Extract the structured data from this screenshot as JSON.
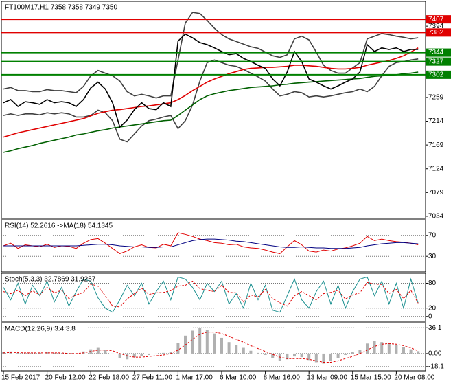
{
  "chart_data": [
    {
      "type": "line",
      "title": "FT100M17,H1 7358 7358 7349 7350",
      "ylim": [
        7030,
        7441
      ],
      "yticks": [
        7394,
        7259,
        7214,
        7169,
        7124,
        7079,
        7034
      ],
      "levels": [
        {
          "value": 7407,
          "color": "#e00000"
        },
        {
          "value": 7382,
          "color": "#e00000"
        },
        {
          "value": 7344,
          "color": "#008000"
        },
        {
          "value": 7327,
          "color": "#008000"
        },
        {
          "value": 7302,
          "color": "#008000"
        }
      ],
      "series": [
        {
          "color": "#404040",
          "values": [
            7275,
            7278,
            7272,
            7272,
            7270,
            7270,
            7274,
            7272,
            7272,
            7270,
            7268,
            7280,
            7300,
            7310,
            7305,
            7300,
            7290,
            7270,
            7262,
            7265,
            7262,
            7258,
            7262,
            7262,
            7330,
            7400,
            7420,
            7418,
            7405,
            7390,
            7378,
            7370,
            7365,
            7360,
            7355,
            7352,
            7345,
            7338,
            7335,
            7340,
            7370,
            7375,
            7368,
            7345,
            7320,
            7310,
            7305,
            7305,
            7315,
            7325,
            7370,
            7375,
            7380,
            7378,
            7375,
            7373,
            7370,
            7372
          ]
        },
        {
          "color": "#404040",
          "values": [
            7225,
            7228,
            7225,
            7228,
            7228,
            7226,
            7230,
            7228,
            7230,
            7228,
            7222,
            7222,
            7225,
            7235,
            7230,
            7215,
            7180,
            7175,
            7190,
            7205,
            7215,
            7218,
            7222,
            7225,
            7200,
            7215,
            7245,
            7290,
            7325,
            7330,
            7325,
            7320,
            7318,
            7312,
            7305,
            7298,
            7290,
            7275,
            7262,
            7265,
            7270,
            7268,
            7260,
            7262,
            7260,
            7262,
            7265,
            7268,
            7270,
            7275,
            7270,
            7280,
            7300,
            7318,
            7325,
            7327,
            7330,
            7332
          ]
        },
        {
          "color": "#006000",
          "values": [
            7155,
            7158,
            7162,
            7165,
            7168,
            7172,
            7175,
            7178,
            7181,
            7184,
            7188,
            7190,
            7193,
            7196,
            7198,
            7201,
            7203,
            7205,
            7207,
            7209,
            7211,
            7213,
            7215,
            7216,
            7225,
            7235,
            7245,
            7255,
            7262,
            7266,
            7269,
            7272,
            7274,
            7276,
            7278,
            7279,
            7280,
            7281,
            7283,
            7284,
            7286,
            7287,
            7288,
            7289,
            7290,
            7291,
            7292,
            7293,
            7294,
            7295,
            7297,
            7299,
            7300,
            7301,
            7302,
            7304,
            7305,
            7307
          ]
        },
        {
          "color": "#e00000",
          "values": [
            7184,
            7188,
            7192,
            7195,
            7198,
            7201,
            7204,
            7207,
            7210,
            7213,
            7216,
            7219,
            7224,
            7229,
            7232,
            7235,
            7236,
            7238,
            7240,
            7242,
            7243,
            7245,
            7247,
            7249,
            7255,
            7263,
            7272,
            7280,
            7288,
            7294,
            7299,
            7304,
            7308,
            7312,
            7314,
            7315,
            7316,
            7316,
            7317,
            7318,
            7320,
            7320,
            7319,
            7318,
            7316,
            7314,
            7313,
            7313,
            7314,
            7316,
            7320,
            7323,
            7326,
            7329,
            7333,
            7338,
            7345,
            7353
          ]
        },
        {
          "color": "#000000",
          "values": [
            7249,
            7255,
            7242,
            7251,
            7249,
            7246,
            7255,
            7249,
            7251,
            7249,
            7242,
            7255,
            7277,
            7288,
            7275,
            7249,
            7203,
            7216,
            7236,
            7249,
            7238,
            7236,
            7249,
            7242,
            7366,
            7379,
            7372,
            7363,
            7359,
            7353,
            7346,
            7340,
            7342,
            7333,
            7327,
            7320,
            7314,
            7294,
            7281,
            7307,
            7346,
            7327,
            7294,
            7288,
            7281,
            7275,
            7281,
            7288,
            7294,
            7307,
            7359,
            7346,
            7353,
            7350,
            7353,
            7346,
            7350,
            7350
          ]
        }
      ]
    },
    {
      "type": "line",
      "title": "RSI(14) 52.2616 ->MA(18) 54.1345",
      "ylim": [
        0,
        100
      ],
      "yticks": [
        70,
        30
      ],
      "series": [
        {
          "color": "#e00000",
          "values": [
            50,
            55,
            45,
            52,
            50,
            48,
            53,
            47,
            50,
            49,
            45,
            55,
            62,
            64,
            55,
            45,
            35,
            40,
            48,
            52,
            47,
            46,
            53,
            50,
            75,
            72,
            68,
            63,
            60,
            56,
            55,
            52,
            53,
            48,
            46,
            45,
            42,
            38,
            35,
            48,
            60,
            52,
            40,
            38,
            42,
            40,
            44,
            46,
            50,
            55,
            68,
            60,
            63,
            60,
            58,
            57,
            55,
            52
          ]
        },
        {
          "color": "#000080",
          "values": [
            50,
            50,
            50,
            50,
            50,
            50,
            50,
            50,
            50,
            50,
            50,
            51,
            52,
            53,
            53,
            52,
            50,
            49,
            48,
            48,
            47,
            47,
            48,
            48,
            52,
            56,
            60,
            62,
            63,
            63,
            62,
            61,
            59,
            58,
            56,
            54,
            52,
            50,
            48,
            47,
            47,
            48,
            47,
            46,
            46,
            45,
            45,
            45,
            46,
            47,
            50,
            52,
            54,
            55,
            56,
            56,
            55,
            54
          ]
        }
      ]
    },
    {
      "type": "line",
      "title": "Stoch(5,3,3) 32.7869 31.9257",
      "ylim": [
        -12,
        104
      ],
      "yticks": [
        80,
        20,
        0
      ],
      "series": [
        {
          "color": "#1a8f8f",
          "values": [
            70,
            40,
            80,
            30,
            75,
            50,
            85,
            35,
            70,
            25,
            60,
            90,
            85,
            45,
            20,
            10,
            40,
            75,
            50,
            80,
            30,
            60,
            85,
            40,
            95,
            90,
            70,
            40,
            80,
            60,
            85,
            30,
            55,
            20,
            80,
            40,
            75,
            15,
            10,
            50,
            90,
            40,
            20,
            60,
            85,
            30,
            75,
            20,
            60,
            90,
            95,
            50,
            85,
            30,
            80,
            20,
            90,
            32
          ]
        },
        {
          "color": "#e00000",
          "dash": true,
          "values": [
            60,
            55,
            63,
            50,
            62,
            52,
            70,
            57,
            63,
            43,
            52,
            58,
            78,
            73,
            50,
            25,
            23,
            42,
            55,
            68,
            53,
            57,
            58,
            62,
            73,
            75,
            85,
            67,
            63,
            60,
            75,
            58,
            57,
            35,
            52,
            47,
            65,
            43,
            33,
            25,
            50,
            60,
            50,
            40,
            55,
            58,
            63,
            42,
            52,
            57,
            82,
            78,
            77,
            55,
            65,
            43,
            63,
            32
          ]
        }
      ]
    },
    {
      "type": "line",
      "title": "MACD(12,26,9) 3.4 3.8",
      "ylim": [
        -24,
        43
      ],
      "yticks": [
        36.1,
        {
          "value": 0,
          "label": "0.00"
        },
        -18.1
      ],
      "categories": [
        "15 Feb 2017",
        null,
        null,
        null,
        null,
        null,
        "20 Feb 12:00",
        null,
        null,
        null,
        null,
        null,
        "22 Feb 18:00",
        null,
        null,
        null,
        null,
        null,
        "27 Feb 11:00",
        null,
        null,
        null,
        null,
        null,
        "1 Mar 17:00",
        null,
        null,
        null,
        null,
        null,
        "6 Mar 10:00",
        null,
        null,
        null,
        null,
        null,
        "8 Mar 16:00",
        null,
        null,
        null,
        null,
        null,
        "13 Mar 09:00",
        null,
        null,
        null,
        null,
        null,
        "15 Mar 15:00",
        null,
        null,
        null,
        null,
        null,
        "20 Mar 08:00",
        null,
        null,
        null
      ],
      "series": [
        {
          "type": "bar",
          "color": "#b0b0b0",
          "values": [
            2,
            3,
            1,
            -1,
            0,
            1,
            2,
            1,
            0,
            -1,
            0,
            3,
            6,
            8,
            5,
            0,
            -6,
            -8,
            -5,
            -3,
            -2,
            -1,
            1,
            2,
            15,
            25,
            32,
            36,
            33,
            28,
            22,
            16,
            12,
            8,
            4,
            1,
            -2,
            -6,
            -10,
            -8,
            -4,
            -5,
            -9,
            -12,
            -14,
            -10,
            -6,
            -2,
            2,
            5,
            14,
            18,
            16,
            14,
            12,
            9,
            6,
            3.4
          ]
        },
        {
          "color": "#e00000",
          "dash": true,
          "values": [
            1,
            1.5,
            1.5,
            1,
            1,
            1,
            1,
            1,
            1,
            0,
            0,
            1,
            3,
            5,
            5,
            4,
            0,
            -3,
            -5,
            -5,
            -4,
            -3,
            -2,
            0,
            5,
            12,
            20,
            27,
            30,
            30,
            28,
            24,
            20,
            16,
            11,
            7,
            3,
            -1,
            -5,
            -7,
            -7,
            -7,
            -8,
            -10,
            -12,
            -12,
            -10,
            -7,
            -4,
            0,
            5,
            10,
            13,
            14,
            13,
            11,
            8,
            3.8
          ]
        }
      ]
    }
  ]
}
